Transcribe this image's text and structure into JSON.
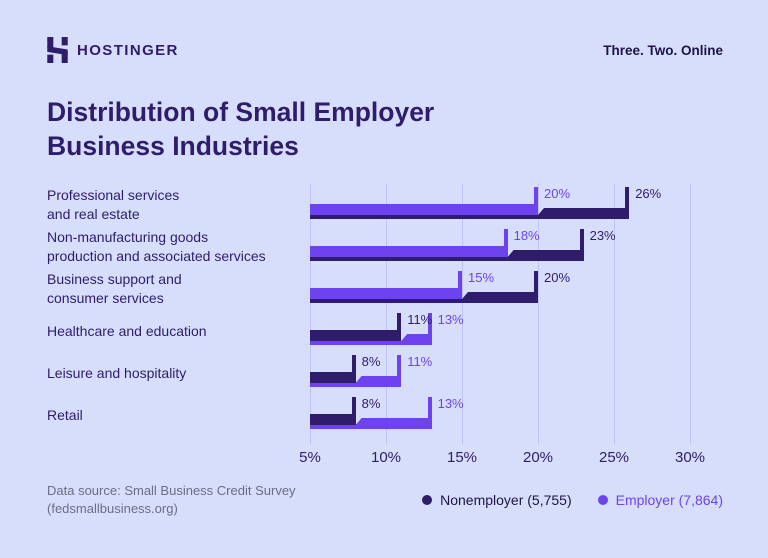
{
  "brand": {
    "name": "HOSTINGER",
    "tagline": "Three. Two. Online"
  },
  "title": "Distribution of Small Employer\nBusiness Industries",
  "chart_data": {
    "type": "bar",
    "orientation": "horizontal",
    "title": "Distribution of Small Employer Business Industries",
    "grid": true,
    "axis_range": [
      5,
      30
    ],
    "x_tick_labels": [
      "5%",
      "10%",
      "15%",
      "20%",
      "25%",
      "30%"
    ],
    "value_suffix": "%",
    "categories": [
      "Professional services\nand real estate",
      "Non-manufacturing goods\nproduction and associated services",
      "Business support and\nconsumer services",
      "Healthcare and education",
      "Leisure and hospitality",
      "Retail"
    ],
    "series": [
      {
        "name": "Nonemployer (5,755)",
        "key": "nonemployer",
        "color": "#2F1C6A",
        "values": [
          26,
          23,
          20,
          11,
          8,
          8
        ]
      },
      {
        "name": "Employer (7,864)",
        "key": "employer",
        "color": "#6D43F0",
        "values": [
          20,
          18,
          15,
          13,
          11,
          13
        ]
      }
    ],
    "legend_position": "bottom-right"
  },
  "legend": {
    "nonemployer": "Nonemployer (5,755)",
    "employer": "Employer (7,864)"
  },
  "footer": {
    "source": "Data source: Small Business Credit Survey\n(fedsmallbusiness.org)"
  },
  "colors": {
    "background": "#D6DEFB",
    "nonemployer": "#2F1C6A",
    "employer": "#6D43F0",
    "gridline": "#BCC5F1",
    "source_text": "#6B6E82",
    "legend_dark_text": "#1F1346"
  }
}
